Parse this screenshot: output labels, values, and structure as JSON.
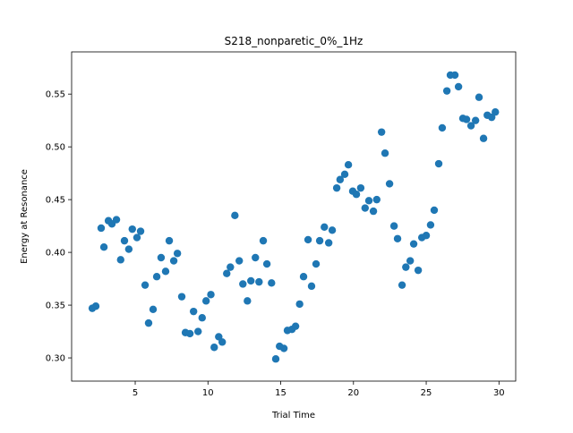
{
  "chart_data": {
    "type": "scatter",
    "title": "S218_nonparetic_0%_1Hz",
    "xlabel": "Trial Time",
    "ylabel": "Energy at Resonance",
    "xlim": [
      0.63,
      31.15
    ],
    "ylim": [
      0.278,
      0.59
    ],
    "xticks": [
      5,
      10,
      15,
      20,
      25,
      30
    ],
    "yticks": [
      {
        "value": 0.3,
        "label": "0.30"
      },
      {
        "value": 0.35,
        "label": "0.35"
      },
      {
        "value": 0.4,
        "label": "0.40"
      },
      {
        "value": 0.45,
        "label": "0.45"
      },
      {
        "value": 0.5,
        "label": "0.50"
      },
      {
        "value": 0.55,
        "label": "0.55"
      }
    ],
    "grid": false,
    "series": [
      {
        "color": "#1f77b4",
        "x": [
          2.05,
          2.29,
          2.66,
          2.85,
          3.16,
          3.4,
          3.71,
          4.0,
          4.26,
          4.56,
          4.8,
          5.12,
          5.37,
          5.68,
          5.92,
          6.23,
          6.48,
          6.78,
          7.09,
          7.34,
          7.65,
          7.9,
          8.2,
          8.45,
          8.76,
          9.01,
          9.32,
          9.6,
          9.87,
          10.2,
          10.43,
          10.74,
          10.98,
          11.29,
          11.54,
          11.85,
          12.15,
          12.4,
          12.71,
          12.95,
          13.26,
          13.51,
          13.8,
          14.05,
          14.37,
          14.66,
          14.92,
          15.22,
          15.46,
          15.77,
          16.02,
          16.3,
          16.57,
          16.88,
          17.12,
          17.43,
          17.68,
          18.0,
          18.3,
          18.54,
          18.85,
          19.08,
          19.4,
          19.65,
          19.95,
          20.2,
          20.5,
          20.8,
          21.06,
          21.37,
          21.6,
          21.93,
          22.17,
          22.48,
          22.79,
          23.03,
          23.34,
          23.6,
          23.9,
          24.14,
          24.45,
          24.7,
          25.0,
          25.3,
          25.55,
          25.86,
          26.1,
          26.42,
          26.66,
          26.97,
          27.22,
          27.52,
          27.77,
          28.08,
          28.39,
          28.63,
          28.94,
          29.2,
          29.5,
          29.75
        ],
        "values": [
          0.347,
          0.349,
          0.423,
          0.405,
          0.43,
          0.427,
          0.431,
          0.393,
          0.411,
          0.403,
          0.422,
          0.414,
          0.42,
          0.369,
          0.333,
          0.346,
          0.377,
          0.395,
          0.382,
          0.411,
          0.392,
          0.399,
          0.358,
          0.324,
          0.323,
          0.344,
          0.325,
          0.338,
          0.354,
          0.36,
          0.31,
          0.32,
          0.315,
          0.38,
          0.386,
          0.435,
          0.392,
          0.37,
          0.354,
          0.373,
          0.395,
          0.372,
          0.411,
          0.389,
          0.371,
          0.299,
          0.311,
          0.309,
          0.326,
          0.327,
          0.33,
          0.351,
          0.377,
          0.412,
          0.368,
          0.389,
          0.411,
          0.424,
          0.409,
          0.421,
          0.461,
          0.469,
          0.474,
          0.483,
          0.458,
          0.455,
          0.461,
          0.442,
          0.449,
          0.439,
          0.45,
          0.514,
          0.494,
          0.465,
          0.425,
          0.413,
          0.369,
          0.386,
          0.392,
          0.408,
          0.383,
          0.414,
          0.416,
          0.426,
          0.44,
          0.484,
          0.518,
          0.553,
          0.568,
          0.568,
          0.557,
          0.527,
          0.526,
          0.52,
          0.525,
          0.547,
          0.508,
          0.53,
          0.528,
          0.533
        ]
      }
    ]
  }
}
